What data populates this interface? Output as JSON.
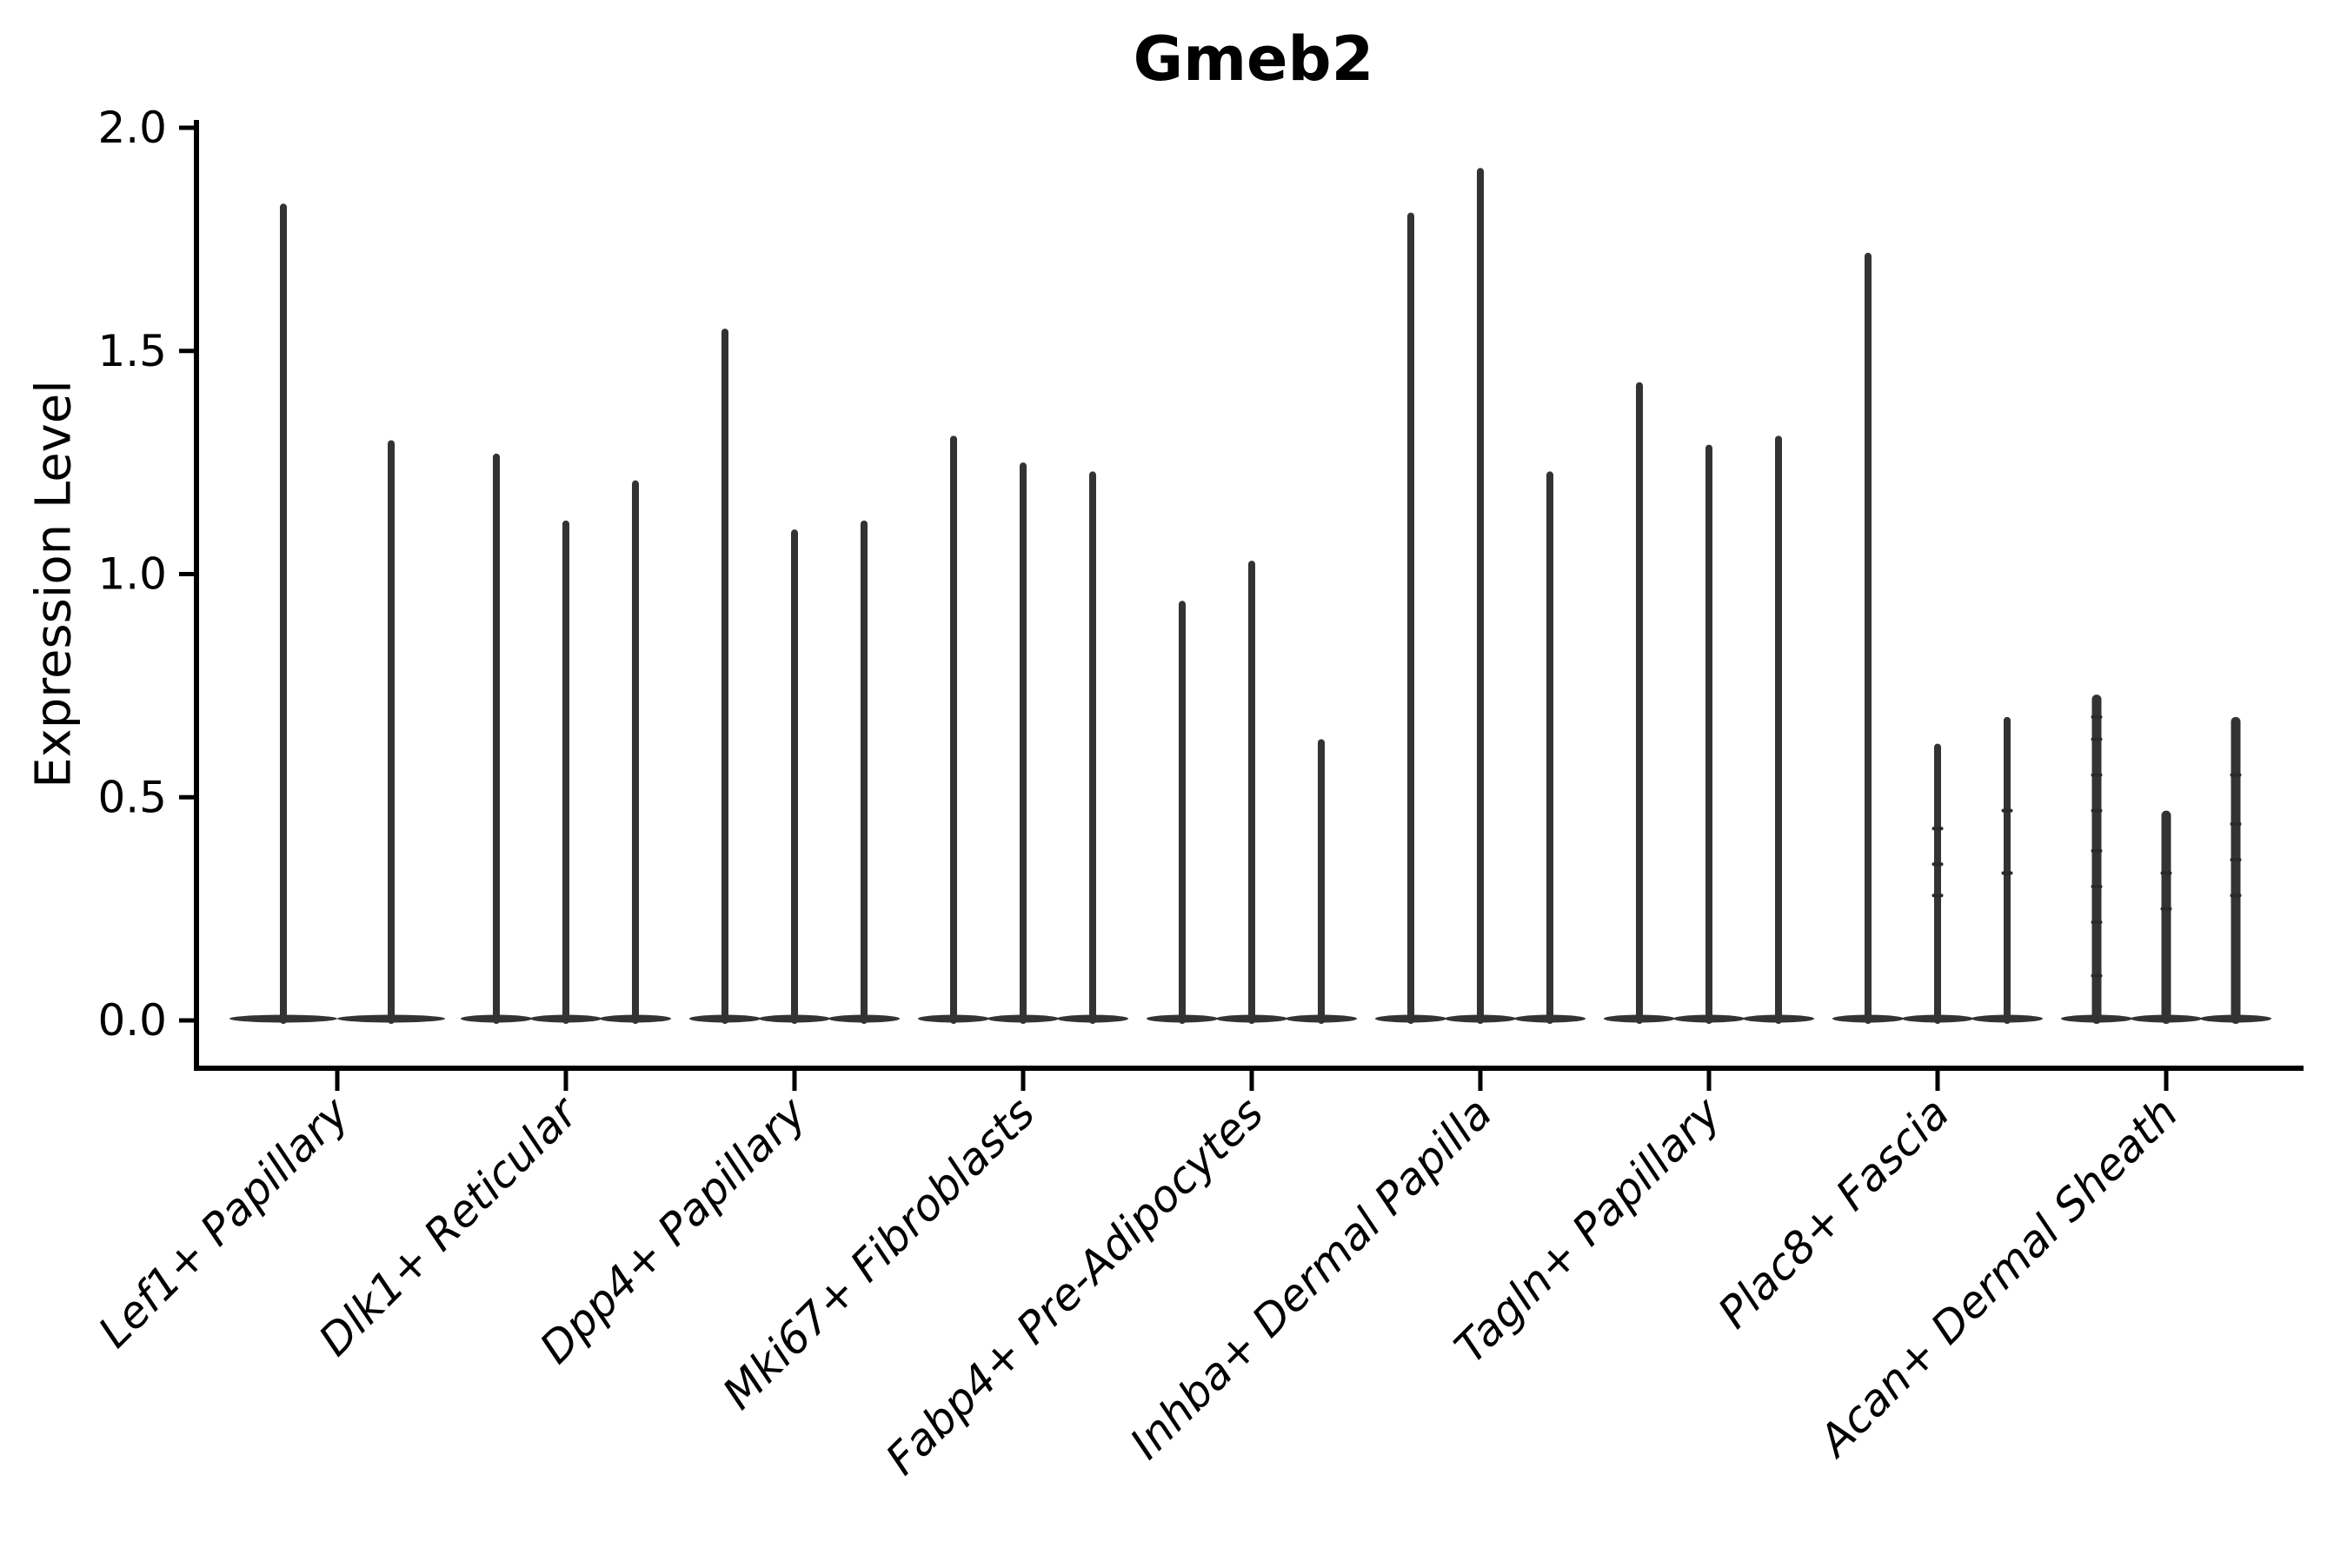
{
  "figure": {
    "title": "Gmeb2",
    "ylabel": "Expression Level"
  },
  "chart_data": {
    "type": "violin",
    "title": "Gmeb2",
    "subtitle": "",
    "xlabel": "",
    "ylabel": "Expression Level",
    "legend": "none",
    "grid": false,
    "ylim": [
      0.0,
      2.05
    ],
    "yticks": [
      0.0,
      0.5,
      1.0,
      1.5,
      2.0
    ],
    "ytick_labels": [
      "0.0",
      "0.5",
      "1.0",
      "1.5",
      "2.0"
    ],
    "categories": [
      "Lef1+ Papillary",
      "Dlk1+ Reticular",
      "Dpp4+ Papillary",
      "Mki67+ Fibroblasts",
      "Fabp4+ Pre-Adipocytes",
      "Inhba+ Dermal Papilla",
      "Tagln+ Papillary",
      "Plac8+ Fascia",
      "Acan+ Dermal Sheath"
    ],
    "series": [
      {
        "category": "Lef1+ Papillary",
        "violin_maxima": [
          1.83,
          1.3
        ]
      },
      {
        "category": "Dlk1+ Reticular",
        "violin_maxima": [
          1.27,
          1.12,
          1.21
        ]
      },
      {
        "category": "Dpp4+ Papillary",
        "violin_maxima": [
          1.55,
          1.1,
          1.12
        ]
      },
      {
        "category": "Mki67+ Fibroblasts",
        "violin_maxima": [
          1.31,
          1.25,
          1.23
        ]
      },
      {
        "category": "Fabp4+ Pre-Adipocytes",
        "violin_maxima": [
          0.94,
          1.03,
          0.63
        ]
      },
      {
        "category": "Inhba+ Dermal Papilla",
        "violin_maxima": [
          1.81,
          1.91,
          1.23
        ]
      },
      {
        "category": "Tagln+ Papillary",
        "violin_maxima": [
          1.43,
          1.29,
          1.31
        ]
      },
      {
        "category": "Plac8+ Fascia",
        "violin_maxima": [
          1.72,
          0.62,
          0.68
        ]
      },
      {
        "category": "Acan+ Dermal Sheath",
        "violin_maxima": [
          0.73,
          0.47,
          0.68
        ]
      }
    ],
    "violin_shape": "wide flat base at expression 0 with thin needle spike rising to the max value",
    "point_marks": [
      {
        "category_index": 7,
        "violin_index": 1,
        "values": [
          0.28,
          0.35,
          0.43
        ]
      },
      {
        "category_index": 7,
        "violin_index": 2,
        "values": [
          0.33,
          0.47
        ]
      },
      {
        "category_index": 8,
        "violin_index": 0,
        "values": [
          0.1,
          0.22,
          0.3,
          0.38,
          0.47,
          0.55,
          0.63,
          0.68
        ]
      },
      {
        "category_index": 8,
        "violin_index": 1,
        "values": [
          0.25,
          0.33
        ]
      },
      {
        "category_index": 8,
        "violin_index": 2,
        "values": [
          0.28,
          0.36,
          0.44,
          0.55
        ]
      }
    ],
    "colors": {
      "violin_fill": "#333333",
      "point_mark": "#2a2a2a",
      "axis": "#000000",
      "text": "#000000",
      "background": "#ffffff"
    }
  }
}
